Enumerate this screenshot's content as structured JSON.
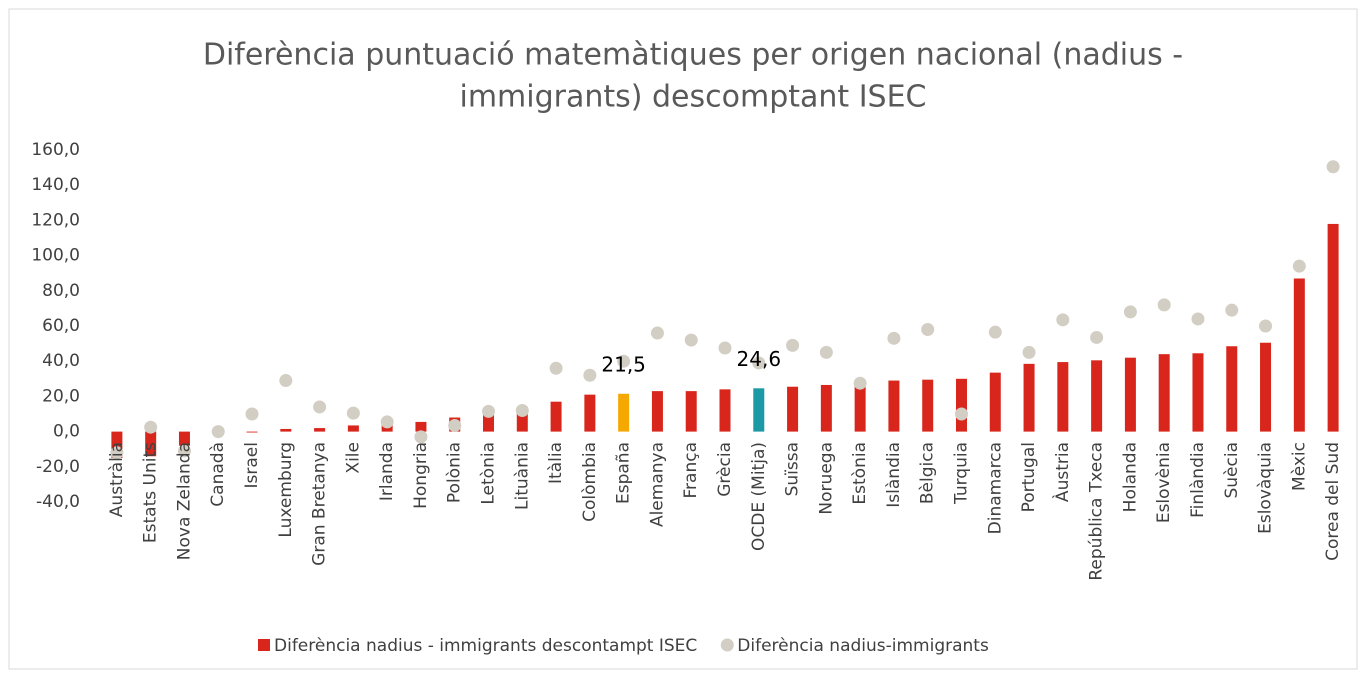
{
  "chart_data": {
    "type": "bar",
    "title_lines": [
      "Diferència puntuació matemàtiques per origen nacional (nadius -",
      "immigrants) descomptant ISEC"
    ],
    "categories": [
      "Austràlia",
      "Estats Units",
      "Nova Zelanda",
      "Canadà",
      "Israel",
      "Luxemburg",
      "Gran Bretanya",
      "Xile",
      "Irlanda",
      "Hongria",
      "Polònia",
      "Letònia",
      "Lituània",
      "Itàlia",
      "Colòmbia",
      "España",
      "Alemanya",
      "França",
      "Grècia",
      "OCDE (Mitja)",
      "Suïssa",
      "Noruega",
      "Estònia",
      "Islàndia",
      "Bèlgica",
      "Turquia",
      "Dinamarca",
      "Portugal",
      "Àustria",
      "República Txeca",
      "Holanda",
      "Eslovènia",
      "Finlàndia",
      "Suècia",
      "Eslovàquia",
      "Mèxic",
      "Corea del Sud"
    ],
    "series": [
      {
        "name": "Diferència nadius - immigrants descontampt ISEC",
        "type": "bar",
        "color": "#d9261c",
        "colors": [
          null,
          null,
          null,
          null,
          null,
          null,
          null,
          null,
          null,
          null,
          null,
          null,
          null,
          null,
          null,
          "#f5a800",
          null,
          null,
          null,
          "#1b9aa6",
          null,
          null,
          null,
          null,
          null,
          null,
          null,
          null,
          null,
          null,
          null,
          null,
          null,
          null,
          null,
          null,
          null
        ],
        "values": [
          -15,
          -14,
          -8,
          0,
          -0.5,
          1.5,
          2,
          3.5,
          4.5,
          5.5,
          8,
          11,
          14,
          17,
          21,
          21.5,
          23,
          23,
          24,
          24.6,
          25.5,
          26.5,
          27,
          29,
          29.5,
          30,
          33.5,
          38.5,
          39.5,
          40.5,
          42,
          44,
          44.5,
          48.5,
          50.5,
          87,
          118
        ],
        "value_labels": [
          null,
          null,
          null,
          null,
          null,
          null,
          null,
          null,
          null,
          null,
          null,
          null,
          null,
          null,
          null,
          "21,5",
          null,
          null,
          null,
          "24,6",
          null,
          null,
          null,
          null,
          null,
          null,
          null,
          null,
          null,
          null,
          null,
          null,
          null,
          null,
          null,
          null,
          null
        ]
      },
      {
        "name": "Diferència nadius-immigrants",
        "type": "scatter",
        "color": "#d3cec4",
        "values": [
          -12,
          2.5,
          -11,
          0,
          10,
          29,
          14,
          10.5,
          5.5,
          -3,
          3.5,
          11.5,
          12,
          36,
          32,
          40,
          56,
          52,
          47.5,
          39,
          49,
          45,
          27.5,
          53,
          58,
          10,
          56.5,
          45,
          63.5,
          53.5,
          68,
          72,
          64,
          69,
          60,
          94,
          150.5
        ]
      }
    ],
    "ylim": [
      -40,
      160
    ],
    "yticks": [
      {
        "value": -40,
        "label": "-40,0"
      },
      {
        "value": -20,
        "label": "-20,0"
      },
      {
        "value": 0,
        "label": "0,0"
      },
      {
        "value": 20,
        "label": "20,0"
      },
      {
        "value": 40,
        "label": "40,0"
      },
      {
        "value": 60,
        "label": "60,0"
      },
      {
        "value": 80,
        "label": "80,0"
      },
      {
        "value": 100,
        "label": "100,0"
      },
      {
        "value": 120,
        "label": "120,0"
      },
      {
        "value": 140,
        "label": "140,0"
      },
      {
        "value": 160,
        "label": "160,0"
      }
    ],
    "grid": false,
    "legend": "bottom"
  }
}
